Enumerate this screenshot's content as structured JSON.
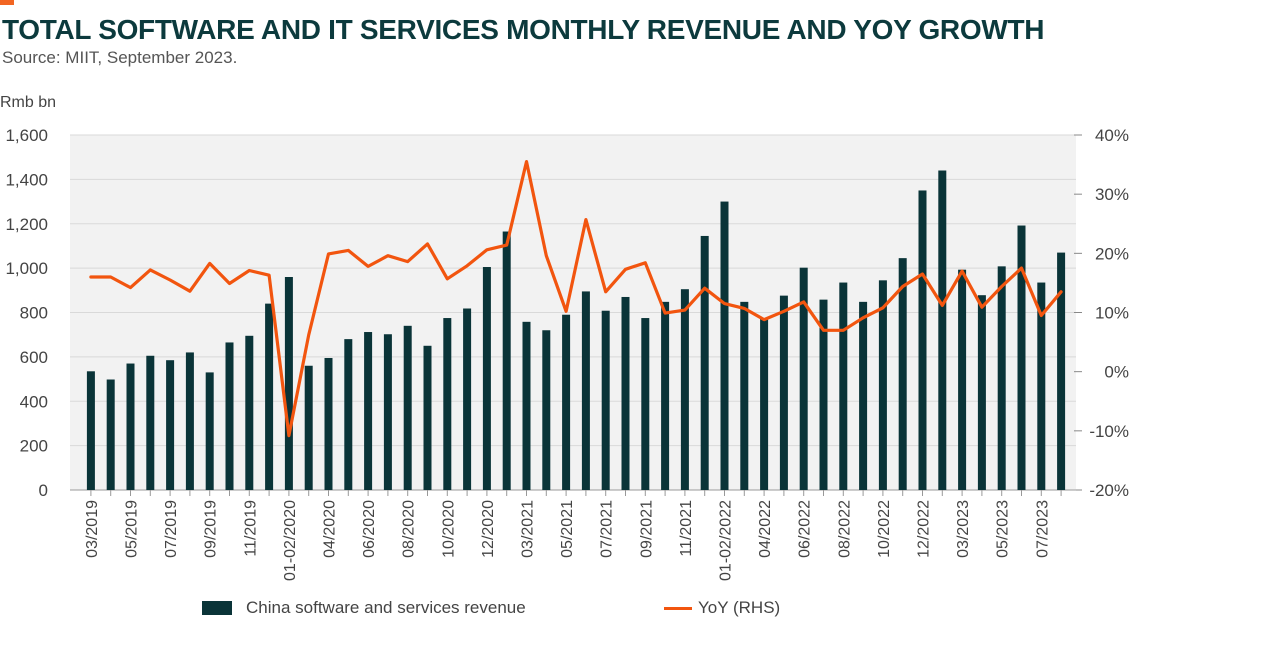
{
  "header": {
    "title": "TOTAL SOFTWARE AND IT SERVICES MONTHLY REVENUE AND YOY GROWTH",
    "source": "Source: MIIT, September 2023.",
    "unit_label": "Rmb bn"
  },
  "colors": {
    "accent": "#f26522",
    "bar": "#0a3438",
    "line": "#f2550f",
    "grid": "#d9d9d9",
    "plot_bg": "#f2f2f2"
  },
  "legend": {
    "bar_label": "China software and services revenue",
    "line_label": "YoY (RHS)"
  },
  "chart_data": {
    "type": "bar",
    "categories": [
      "03/2019",
      "04/2019",
      "05/2019",
      "06/2019",
      "07/2019",
      "08/2019",
      "09/2019",
      "10/2019",
      "11/2019",
      "12/2019",
      "01-02/2020",
      "03/2020",
      "04/2020",
      "05/2020",
      "06/2020",
      "07/2020",
      "08/2020",
      "09/2020",
      "10/2020",
      "11/2020",
      "12/2020",
      "01-02/2021",
      "03/2021",
      "04/2021",
      "05/2021",
      "06/2021",
      "07/2021",
      "08/2021",
      "09/2021",
      "10/2021",
      "11/2021",
      "12/2021",
      "01-02/2022",
      "03/2022",
      "04/2022",
      "05/2022",
      "06/2022",
      "07/2022",
      "08/2022",
      "09/2022",
      "10/2022",
      "11/2022",
      "12/2022",
      "01-02/2023",
      "03/2023",
      "04/2023",
      "05/2023",
      "06/2023",
      "07/2023",
      "08/2023"
    ],
    "tick_labels": [
      "03/2019",
      "",
      "05/2019",
      "",
      "07/2019",
      "",
      "09/2019",
      "",
      "11/2019",
      "",
      "01-02/2020",
      "",
      "04/2020",
      "",
      "06/2020",
      "",
      "08/2020",
      "",
      "10/2020",
      "",
      "12/2020",
      "",
      "03/2021",
      "",
      "05/2021",
      "",
      "07/2021",
      "",
      "09/2021",
      "",
      "11/2021",
      "",
      "01-02/2022",
      "",
      "04/2022",
      "",
      "06/2022",
      "",
      "08/2022",
      "",
      "10/2022",
      "",
      "12/2022",
      "",
      "03/2023",
      "",
      "05/2023",
      "",
      "07/2023",
      ""
    ],
    "series": [
      {
        "name": "China software and services revenue",
        "type": "bar",
        "axis": "left",
        "values": [
          535,
          498,
          570,
          605,
          585,
          620,
          530,
          665,
          695,
          840,
          960,
          560,
          595,
          680,
          712,
          702,
          740,
          650,
          775,
          818,
          1005,
          1165,
          758,
          720,
          790,
          895,
          808,
          870,
          775,
          848,
          905,
          1145,
          1300,
          848,
          775,
          876,
          1002,
          858,
          935,
          848,
          945,
          1045,
          1350,
          1440,
          993,
          878,
          1008,
          1192,
          935,
          1070
        ]
      },
      {
        "name": "YoY (RHS)",
        "type": "line",
        "axis": "right",
        "values": [
          16.0,
          16.0,
          14.2,
          17.2,
          15.5,
          13.6,
          18.3,
          14.9,
          17.1,
          16.3,
          -10.8,
          6.2,
          19.9,
          20.5,
          17.8,
          19.6,
          18.6,
          21.6,
          15.7,
          17.9,
          20.6,
          21.4,
          35.5,
          19.6,
          10.2,
          25.7,
          13.5,
          17.3,
          18.4,
          9.9,
          10.4,
          14.1,
          11.5,
          10.7,
          8.8,
          10.2,
          11.8,
          7.0,
          7.0,
          9.1,
          10.8,
          14.4,
          16.5,
          11.2,
          17.0,
          10.9,
          14.4,
          17.5,
          9.5,
          13.5
        ]
      }
    ],
    "ylim_left": [
      0,
      1600
    ],
    "yticks_left": [
      "0",
      "200",
      "400",
      "600",
      "800",
      "1,000",
      "1,200",
      "1,400",
      "1,600"
    ],
    "ylim_right": [
      -20,
      40
    ],
    "yticks_right": [
      "-20%",
      "-10%",
      "0%",
      "10%",
      "20%",
      "30%",
      "40%"
    ],
    "grid": true,
    "legend_position": "bottom"
  }
}
